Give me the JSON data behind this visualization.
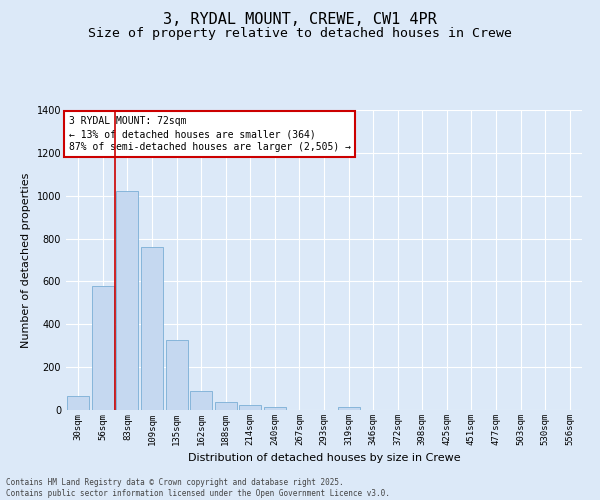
{
  "title_line1": "3, RYDAL MOUNT, CREWE, CW1 4PR",
  "title_line2": "Size of property relative to detached houses in Crewe",
  "xlabel": "Distribution of detached houses by size in Crewe",
  "ylabel": "Number of detached properties",
  "bar_color": "#c5d8f0",
  "bar_edge_color": "#7aaed6",
  "background_color": "#dce9f8",
  "grid_color": "#ffffff",
  "categories": [
    "30sqm",
    "56sqm",
    "83sqm",
    "109sqm",
    "135sqm",
    "162sqm",
    "188sqm",
    "214sqm",
    "240sqm",
    "267sqm",
    "293sqm",
    "319sqm",
    "346sqm",
    "372sqm",
    "398sqm",
    "425sqm",
    "451sqm",
    "477sqm",
    "503sqm",
    "530sqm",
    "556sqm"
  ],
  "values": [
    65,
    580,
    1020,
    760,
    325,
    90,
    38,
    25,
    13,
    0,
    0,
    13,
    0,
    0,
    0,
    0,
    0,
    0,
    0,
    0,
    0
  ],
  "ylim": [
    0,
    1400
  ],
  "yticks": [
    0,
    200,
    400,
    600,
    800,
    1000,
    1200,
    1400
  ],
  "vline_color": "#cc0000",
  "vline_position": 1.5,
  "annotation_title": "3 RYDAL MOUNT: 72sqm",
  "annotation_line2": "← 13% of detached houses are smaller (364)",
  "annotation_line3": "87% of semi-detached houses are larger (2,505) →",
  "annotation_box_color": "#ffffff",
  "annotation_box_edge_color": "#cc0000",
  "footer_line1": "Contains HM Land Registry data © Crown copyright and database right 2025.",
  "footer_line2": "Contains public sector information licensed under the Open Government Licence v3.0.",
  "title_fontsize": 11,
  "subtitle_fontsize": 9.5,
  "tick_fontsize": 6.5,
  "ylabel_fontsize": 8,
  "xlabel_fontsize": 8,
  "annotation_fontsize": 7,
  "footer_fontsize": 5.5
}
